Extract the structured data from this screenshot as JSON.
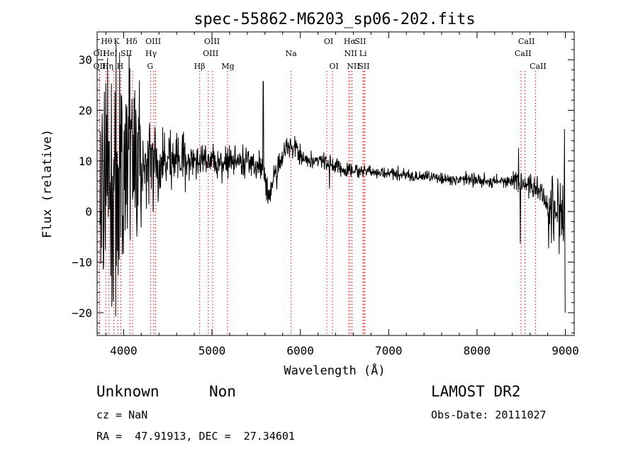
{
  "chart_data": {
    "type": "line",
    "title": "spec-55862-M6203_sp06-202.fits",
    "xlabel": "Wavelength (Å)",
    "ylabel": "Flux (relative)",
    "xlim": [
      3700,
      9100
    ],
    "ylim": [
      -24.5,
      35.5
    ],
    "x_ticks": [
      4000,
      5000,
      6000,
      7000,
      8000,
      9000
    ],
    "y_ticks": [
      -20,
      -10,
      0,
      10,
      20,
      30
    ],
    "grid": false,
    "line_color": "#000000",
    "marker_color": "#ff0000",
    "spectrum_anchors": [
      [
        3800,
        6
      ],
      [
        3900,
        7
      ],
      [
        4000,
        9
      ],
      [
        4100,
        10
      ],
      [
        4200,
        10
      ],
      [
        4300,
        9
      ],
      [
        4500,
        10
      ],
      [
        4700,
        10
      ],
      [
        5000,
        10
      ],
      [
        5200,
        10
      ],
      [
        5400,
        10
      ],
      [
        5500,
        9.5
      ],
      [
        5580,
        8
      ],
      [
        5620,
        5
      ],
      [
        5650,
        3.5
      ],
      [
        5700,
        6
      ],
      [
        5750,
        9
      ],
      [
        5800,
        12
      ],
      [
        5880,
        13
      ],
      [
        5950,
        12.5
      ],
      [
        6000,
        11
      ],
      [
        6100,
        10
      ],
      [
        6200,
        10
      ],
      [
        6300,
        9.5
      ],
      [
        6500,
        8.5
      ],
      [
        6700,
        8
      ],
      [
        7000,
        7.5
      ],
      [
        7300,
        7
      ],
      [
        7600,
        6.5
      ],
      [
        7900,
        6.3
      ],
      [
        8200,
        6
      ],
      [
        8450,
        6
      ],
      [
        8500,
        5.5
      ],
      [
        8600,
        5
      ],
      [
        8700,
        4.5
      ],
      [
        8800,
        1.5
      ],
      [
        8900,
        0.5
      ],
      [
        9000,
        -1
      ]
    ],
    "spikes": [
      [
        5580,
        25.7
      ],
      [
        6330,
        4.5
      ],
      [
        8470,
        12.6
      ],
      [
        8490,
        -6.3
      ],
      [
        8810,
        -7.3
      ],
      [
        8990,
        16.3
      ],
      [
        9000,
        -20
      ]
    ],
    "line_markers": [
      {
        "label": "Hθ",
        "x": 3798,
        "row": 1,
        "text_x": 3808
      },
      {
        "label": "OII",
        "x": 3727,
        "row": 2,
        "text_x": 3728
      },
      {
        "label": "OII",
        "x": 3729,
        "row": 3,
        "text_x": 3728
      },
      {
        "label": "K",
        "x": 3934,
        "row": 1,
        "text_x": 3920
      },
      {
        "label": "HeI",
        "x": 3889,
        "row": 2,
        "text_x": 3850
      },
      {
        "label": "Hη",
        "x": 3835,
        "row": 3,
        "text_x": 3820
      },
      {
        "label": "SII",
        "x": 4072,
        "row": 2,
        "text_x": 4030
      },
      {
        "label": "H",
        "x": 3969,
        "row": 3,
        "text_x": 3960
      },
      {
        "label": "Hδ",
        "x": 4102,
        "row": 1,
        "text_x": 4090
      },
      {
        "label": "OIII",
        "x": 4363,
        "row": 1,
        "text_x": 4335
      },
      {
        "label": "Hγ",
        "x": 4340,
        "row": 2,
        "text_x": 4310
      },
      {
        "label": "G",
        "x": 4305,
        "row": 3,
        "text_x": 4300
      },
      {
        "label": "OIII",
        "x": 5007,
        "row": 1,
        "text_x": 5000
      },
      {
        "label": "OIII",
        "x": 4959,
        "row": 2,
        "text_x": 4985
      },
      {
        "label": "Hβ",
        "x": 4861,
        "row": 3,
        "text_x": 4860
      },
      {
        "label": "Mg",
        "x": 5175,
        "row": 3,
        "text_x": 5180
      },
      {
        "label": "Na",
        "x": 5893,
        "row": 2,
        "text_x": 5895
      },
      {
        "label": "OI",
        "x": 6300,
        "row": 1,
        "text_x": 6320
      },
      {
        "label": "OI",
        "x": 6364,
        "row": 3,
        "text_x": 6380
      },
      {
        "label": "Hα",
        "x": 6563,
        "row": 1,
        "text_x": 6560
      },
      {
        "label": "SII",
        "x": 6720,
        "row": 1,
        "text_x": 6680
      },
      {
        "label": "NII",
        "x": 6548,
        "row": 2,
        "text_x": 6570
      },
      {
        "label": "Li",
        "x": 6708,
        "row": 2,
        "text_x": 6710
      },
      {
        "label": "NII",
        "x": 6584,
        "row": 3,
        "text_x": 6600
      },
      {
        "label": "SII",
        "x": 6731,
        "row": 3,
        "text_x": 6720
      },
      {
        "label": "CaII",
        "x": 8542,
        "row": 1,
        "text_x": 8560
      },
      {
        "label": "CaII",
        "x": 8498,
        "row": 2,
        "text_x": 8520
      },
      {
        "label": "CaII",
        "x": 8662,
        "row": 3,
        "text_x": 8690
      }
    ]
  },
  "info": {
    "class": "Unknown",
    "subclass": "Non",
    "survey": "LAMOST DR2",
    "cz": "cz = NaN",
    "obs_date": "Obs-Date: 20111027",
    "coords": "RA =  47.91913, DEC =  27.34601"
  }
}
